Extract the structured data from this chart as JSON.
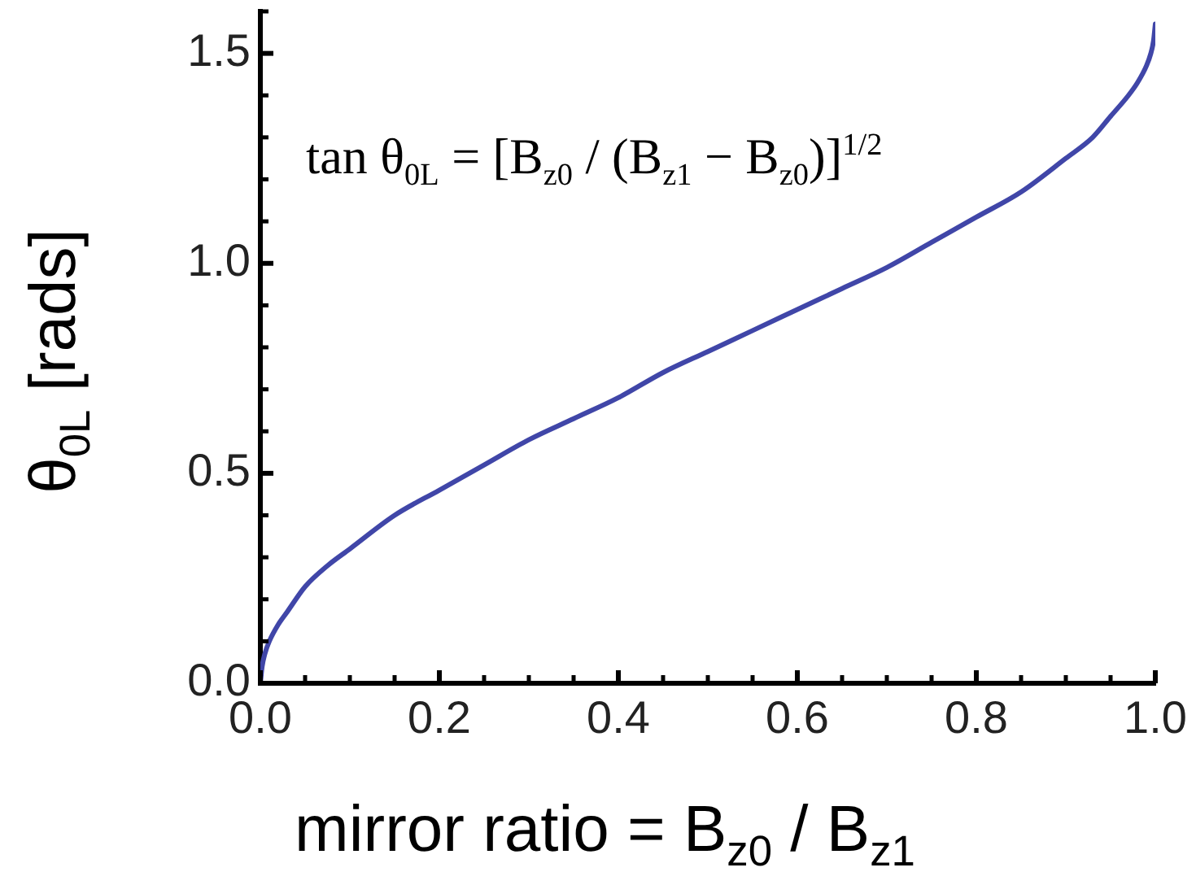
{
  "chart_data": {
    "type": "line",
    "xlabel": "mirror ratio = B$_{z0}$ / B$_{z1}$",
    "ylabel": "θ$_{0L}$ [rads]",
    "annotations": [
      "tan θ$_{0L}$ = [B$_{z0}$ / (B$_{z1}$ − B$_{z0}$)]$^{1/2}$"
    ],
    "x": [
      0,
      0.002,
      0.005,
      0.01,
      0.02,
      0.03,
      0.05,
      0.075,
      0.1,
      0.15,
      0.2,
      0.25,
      0.3,
      0.35,
      0.4,
      0.45,
      0.5,
      0.55,
      0.6,
      0.65,
      0.7,
      0.75,
      0.8,
      0.85,
      0.9,
      0.93,
      0.95,
      0.97,
      0.98,
      0.99,
      0.995,
      0.998,
      1.0
    ],
    "values": [
      0,
      0.04,
      0.07,
      0.1,
      0.14,
      0.17,
      0.23,
      0.28,
      0.32,
      0.4,
      0.46,
      0.52,
      0.58,
      0.63,
      0.68,
      0.74,
      0.79,
      0.84,
      0.89,
      0.94,
      0.99,
      1.05,
      1.11,
      1.17,
      1.25,
      1.3,
      1.35,
      1.4,
      1.43,
      1.47,
      1.5,
      1.53,
      1.57
    ],
    "color": "#4046a8",
    "marker": "none",
    "line_style": "solid",
    "xlim": [
      0,
      1
    ],
    "ylim": [
      0,
      1.6
    ],
    "xticks": [
      {
        "value": 0,
        "label": "0.0"
      },
      {
        "value": 0.05,
        "label": null
      },
      {
        "value": 0.1,
        "label": null
      },
      {
        "value": 0.15,
        "label": null
      },
      0.2,
      {
        "value": 0.25,
        "label": null
      },
      {
        "value": 0.3,
        "label": null
      },
      {
        "value": 0.35,
        "label": null
      },
      0.4,
      {
        "value": 0.45,
        "label": null
      },
      {
        "value": 0.5,
        "label": null
      },
      {
        "value": 0.55,
        "label": null
      },
      0.6,
      {
        "value": 0.65,
        "label": null
      },
      {
        "value": 0.7,
        "label": null
      },
      {
        "value": 0.75,
        "label": null
      },
      0.8,
      {
        "value": 0.85,
        "label": null
      },
      {
        "value": 0.9,
        "label": null
      },
      {
        "value": 0.95,
        "label": null
      },
      {
        "value": 1,
        "label": "1.0"
      }
    ],
    "yticks": [
      {
        "value": 0,
        "label": "0.0"
      },
      {
        "value": 0.1,
        "label": null
      },
      {
        "value": 0.2,
        "label": null
      },
      {
        "value": 0.3,
        "label": null
      },
      {
        "value": 0.4,
        "label": null
      },
      0.5,
      {
        "value": 0.6,
        "label": null
      },
      {
        "value": 0.7,
        "label": null
      },
      {
        "value": 0.8,
        "label": null
      },
      {
        "value": 0.9,
        "label": null
      },
      {
        "value": 1,
        "label": "1.0"
      },
      {
        "value": 1.1,
        "label": null
      },
      {
        "value": 1.2,
        "label": null
      },
      {
        "value": 1.3,
        "label": null
      },
      {
        "value": 1.4,
        "label": null
      },
      1.5,
      {
        "value": 1.6,
        "label": null
      }
    ]
  }
}
